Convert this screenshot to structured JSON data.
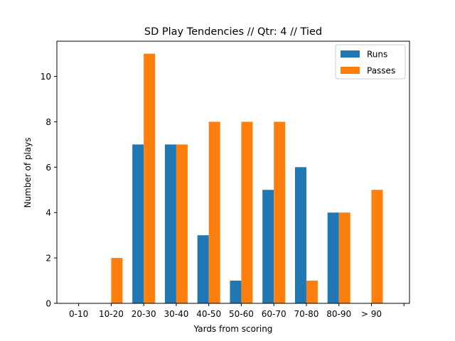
{
  "chart_data": {
    "type": "bar",
    "title": "SD Play Tendencies // Qtr: 4 // Tied",
    "xlabel": "Yards from scoring",
    "ylabel": "Number of plays",
    "categories": [
      "0-10",
      "10-20",
      "20-30",
      "30-40",
      "40-50",
      "50-60",
      "60-70",
      "70-80",
      "80-90",
      "> 90"
    ],
    "series": [
      {
        "name": "Runs",
        "color": "#1f77b4",
        "values": [
          0,
          0,
          7,
          7,
          3,
          1,
          5,
          6,
          4,
          0
        ]
      },
      {
        "name": "Passes",
        "color": "#ff7f0e",
        "values": [
          0,
          2,
          11,
          7,
          8,
          8,
          8,
          1,
          4,
          5
        ]
      }
    ],
    "ylim": [
      0,
      11.55
    ],
    "yticks": [
      0,
      2,
      4,
      6,
      8,
      10
    ],
    "grid": false,
    "legend_position": "top-right"
  }
}
